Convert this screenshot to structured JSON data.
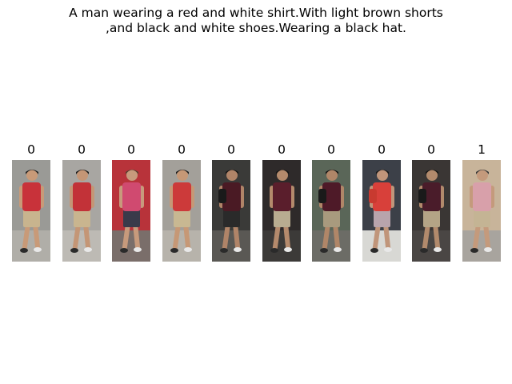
{
  "query": {
    "caption_line1": "A man wearing a red and white shirt.With light brown shorts",
    "caption_line2": ",and black and white shoes.Wearing a black hat."
  },
  "gallery": [
    {
      "score": "0",
      "bg": "#9a9a96",
      "ground": "#b0aea8",
      "shirt": "#c8323a",
      "shorts": "#c8b48e",
      "skin": "#c89a78",
      "hair": "#222222",
      "bag": "none"
    },
    {
      "score": "0",
      "bg": "#a8a6a2",
      "ground": "#bdbab4",
      "shirt": "#c23238",
      "shorts": "#c9b58f",
      "skin": "#c49676",
      "hair": "#1e1e1e",
      "bag": "none"
    },
    {
      "score": "0",
      "bg": "#b8333a",
      "ground": "#7a6e6a",
      "shirt": "#d04a70",
      "shorts": "#3a3a4a",
      "skin": "#c79a7c",
      "hair": "#5a4030",
      "bag": "none"
    },
    {
      "score": "0",
      "bg": "#a3a09a",
      "ground": "#b7b3ab",
      "shirt": "#cc3a3a",
      "shorts": "#c8b892",
      "skin": "#c69876",
      "hair": "#202020",
      "bag": "none"
    },
    {
      "score": "0",
      "bg": "#3a3a38",
      "ground": "#5a5854",
      "shirt": "#4a1a24",
      "shorts": "#2a2a2a",
      "skin": "#b08468",
      "hair": "#151515",
      "bag": "#1a1a1a"
    },
    {
      "score": "0",
      "bg": "#2e2a2a",
      "ground": "#3c3a38",
      "shirt": "#5a1e2c",
      "shorts": "#b8ac90",
      "skin": "#b48a6c",
      "hair": "#151515",
      "bag": "none"
    },
    {
      "score": "0",
      "bg": "#5a6658",
      "ground": "#6c6c66",
      "shirt": "#4e1a28",
      "shorts": "#a89a7e",
      "skin": "#b08668",
      "hair": "#151515",
      "bag": "#1a1a1a"
    },
    {
      "score": "0",
      "bg": "#3c4048",
      "ground": "#d8d8d4",
      "shirt": "#d8403a",
      "shorts": "#b8a4ac",
      "skin": "#c0957a",
      "hair": "#1a1a1a",
      "bag": "#c83a30"
    },
    {
      "score": "0",
      "bg": "#3a3634",
      "ground": "#4a4644",
      "shirt": "#4a1c2a",
      "shorts": "#b4a486",
      "skin": "#b28a6c",
      "hair": "#151515",
      "bag": "#1a1a1a"
    },
    {
      "score": "1",
      "bg": "#c8b49a",
      "ground": "#a8a49e",
      "shirt": "#d8a0aa",
      "shorts": "#c4b494",
      "skin": "#c49a7c",
      "hair": "#3a3a3a",
      "bag": "none"
    }
  ]
}
